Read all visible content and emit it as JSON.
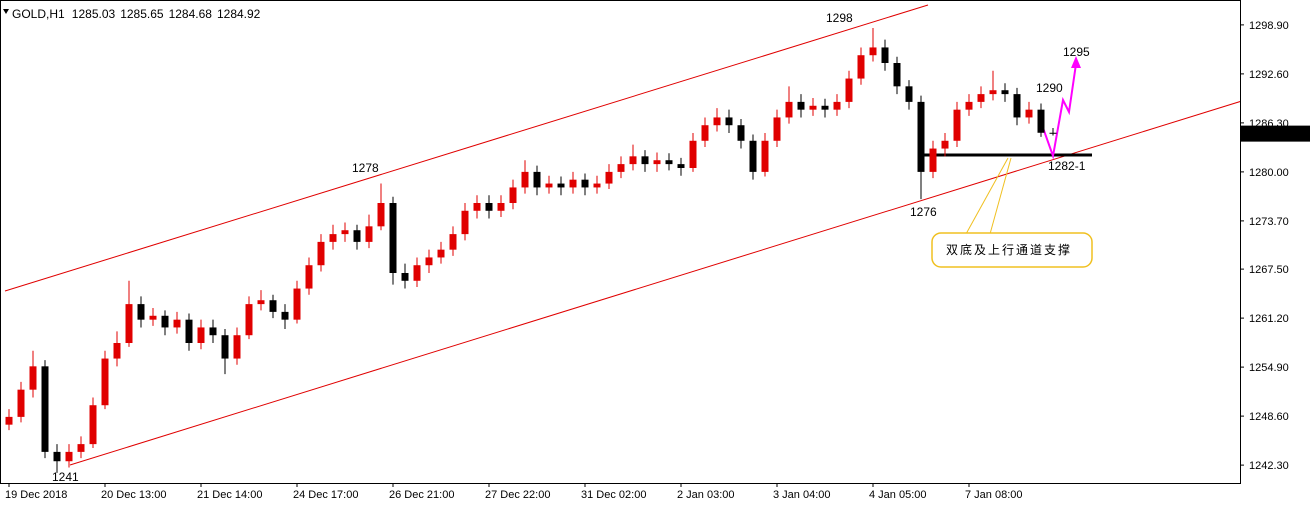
{
  "chart_data": {
    "type": "candlestick",
    "title": "GOLD,H1",
    "up_color": "#e00000",
    "down_color": "#000000",
    "ylim": [
      1240,
      1302.1
    ],
    "yticks": [
      {
        "value": 1242.3,
        "label": "1242.30"
      },
      {
        "value": 1248.6,
        "label": "1248.60"
      },
      {
        "value": 1254.9,
        "label": "1254.90"
      },
      {
        "value": 1261.2,
        "label": "1261.20"
      },
      {
        "value": 1267.5,
        "label": "1267.50"
      },
      {
        "value": 1273.7,
        "label": "1273.70"
      },
      {
        "value": 1280,
        "label": "1280.00"
      },
      {
        "value": 1286.3,
        "label": "1286.30"
      },
      {
        "value": 1292.6,
        "label": "1292.60"
      },
      {
        "value": 1298.9,
        "label": "1298.90"
      }
    ],
    "categories": [
      "19 Dec 2018",
      null,
      null,
      null,
      null,
      null,
      null,
      null,
      "20 Dec 13:00",
      null,
      null,
      null,
      null,
      null,
      null,
      null,
      "21 Dec 14:00",
      null,
      null,
      null,
      null,
      null,
      null,
      null,
      "24 Dec 17:00",
      null,
      null,
      null,
      null,
      null,
      null,
      null,
      "26 Dec 21:00",
      null,
      null,
      null,
      null,
      null,
      null,
      null,
      "27 Dec 22:00",
      null,
      null,
      null,
      null,
      null,
      null,
      null,
      "31 Dec 02:00",
      null,
      null,
      null,
      null,
      null,
      null,
      null,
      "2 Jan 03:00",
      null,
      null,
      null,
      null,
      null,
      null,
      null,
      "3 Jan 04:00",
      null,
      null,
      null,
      null,
      null,
      null,
      null,
      "4 Jan 05:00",
      null,
      null,
      null,
      null,
      null,
      null,
      null,
      "7 Jan 08:00",
      null,
      null,
      null,
      null,
      null,
      null,
      null
    ],
    "open": [
      1247.5,
      1248.5,
      1252,
      1255,
      1244,
      1242.8,
      1244,
      1245,
      1250,
      1256,
      1258,
      1263,
      1261,
      1261.5,
      1260,
      1261,
      1258,
      1260,
      1259,
      1256,
      1259,
      1263,
      1263.5,
      1262,
      1261,
      1265,
      1268,
      1271,
      1272,
      1272.5,
      1271,
      1273,
      1276,
      1267,
      1266,
      1268,
      1269,
      1270,
      1272,
      1275,
      1276,
      1275,
      1276,
      1278,
      1280,
      1278,
      1278.5,
      1278,
      1279,
      1278,
      1278.5,
      1280,
      1281,
      1282,
      1281,
      1281.5,
      1281,
      1280.5,
      1284,
      1286,
      1287,
      1286,
      1284,
      1280,
      1284,
      1287,
      1289,
      1288,
      1288.5,
      1288,
      1289,
      1292,
      1295,
      1296,
      1294,
      1291,
      1289,
      1280,
      1283,
      1284,
      1288,
      1289,
      1290,
      1290.5,
      1290,
      1287,
      1288,
      1285.03
    ],
    "high": [
      1249.5,
      1253,
      1257,
      1255.8,
      1245,
      1245,
      1246,
      1251,
      1257,
      1259.5,
      1266,
      1264,
      1262.5,
      1262.2,
      1262,
      1261.8,
      1261,
      1261,
      1259.8,
      1260,
      1264,
      1264.8,
      1264.2,
      1263,
      1266,
      1269,
      1272,
      1273.2,
      1273.5,
      1273.2,
      1274.5,
      1278.5,
      1276.8,
      1268.2,
      1269,
      1270,
      1271,
      1273,
      1276,
      1277,
      1277,
      1277,
      1279,
      1281.5,
      1280.8,
      1279.5,
      1279.4,
      1280,
      1279.8,
      1279.5,
      1281,
      1282,
      1283.5,
      1282.8,
      1282.5,
      1282.4,
      1281.8,
      1285,
      1287,
      1288.2,
      1288,
      1286.8,
      1284.8,
      1285,
      1288,
      1291,
      1290,
      1289.5,
      1289.4,
      1290,
      1293,
      1296,
      1298.5,
      1297,
      1294.8,
      1291.8,
      1289.8,
      1284,
      1285,
      1289,
      1290,
      1291,
      1293,
      1291.4,
      1290.8,
      1289,
      1288.8,
      1285.65
    ],
    "low": [
      1246.8,
      1247.8,
      1251,
      1243.2,
      1241.3,
      1242,
      1243.2,
      1244.5,
      1249.5,
      1255,
      1257.5,
      1260,
      1260.2,
      1259,
      1259.2,
      1257,
      1257.2,
      1258,
      1254,
      1255.2,
      1258.5,
      1262.2,
      1261.2,
      1259.8,
      1260.5,
      1264.2,
      1267.2,
      1270,
      1271,
      1270,
      1270.2,
      1272.5,
      1265.5,
      1265,
      1265.2,
      1267,
      1268.2,
      1269.2,
      1271.2,
      1274,
      1274,
      1274.2,
      1275.2,
      1277.2,
      1277,
      1277.2,
      1277,
      1277.2,
      1277,
      1277.2,
      1277.8,
      1279.2,
      1280.2,
      1280,
      1280,
      1280.2,
      1279.5,
      1280,
      1283.2,
      1285.2,
      1285,
      1283,
      1279,
      1279.4,
      1283.2,
      1286.2,
      1287,
      1287.2,
      1287,
      1287.2,
      1288.2,
      1291.2,
      1294.2,
      1293,
      1290,
      1288,
      1276.5,
      1279.2,
      1282,
      1283.2,
      1287.2,
      1288.2,
      1289.2,
      1289,
      1286,
      1286.2,
      1284.5,
      1284.68
    ],
    "close": [
      1248.5,
      1252,
      1255,
      1244,
      1242.8,
      1244,
      1245,
      1250,
      1256,
      1258,
      1263,
      1261,
      1261.5,
      1260,
      1261,
      1258,
      1260,
      1259,
      1256,
      1259,
      1263,
      1263.5,
      1262,
      1261,
      1265,
      1268,
      1271,
      1272,
      1272.5,
      1271,
      1273,
      1276,
      1267,
      1266,
      1268,
      1269,
      1270,
      1272,
      1275,
      1276,
      1275,
      1276,
      1278,
      1280,
      1278,
      1278.5,
      1278,
      1279,
      1278,
      1278.5,
      1280,
      1281,
      1282,
      1281,
      1281.5,
      1281,
      1280.5,
      1284,
      1286,
      1287,
      1286,
      1284,
      1280,
      1284,
      1287,
      1289,
      1288,
      1288.5,
      1288,
      1289,
      1292,
      1295,
      1296,
      1294,
      1291,
      1289,
      1280,
      1283,
      1284,
      1288,
      1289,
      1290,
      1290.5,
      1290,
      1287,
      1288,
      1285.03,
      1284.92
    ],
    "annotations": [
      "1298",
      "1278",
      "1241",
      "1276",
      "1290",
      "1295",
      "1282-1",
      "双底及上行通道支撑"
    ]
  }
}
